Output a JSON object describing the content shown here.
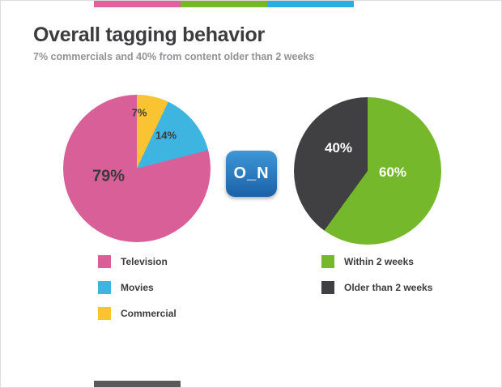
{
  "page": {
    "title": "Overall tagging behavior",
    "subtitle": "7% commercials and 40% from content older than 2 weeks"
  },
  "accent_strips": {
    "top": [
      {
        "name": "pink",
        "color": "#e0619b"
      },
      {
        "name": "green",
        "color": "#77b82a"
      },
      {
        "name": "blue",
        "color": "#2bace2"
      }
    ],
    "bottom": [
      {
        "name": "gray",
        "color": "#59595b"
      }
    ]
  },
  "logo": {
    "text": "O_N",
    "background": "#2a7cc2"
  },
  "chart_data": [
    {
      "type": "pie",
      "name": "tagging-by-content-type",
      "slices": [
        {
          "label": "Commercial",
          "value": 7,
          "color": "#f9c331",
          "data_label": "7%"
        },
        {
          "label": "Movies",
          "value": 14,
          "color": "#3eb4e1",
          "data_label": "14%"
        },
        {
          "label": "Television",
          "value": 79,
          "color": "#d95f99",
          "data_label": "79%"
        }
      ],
      "legend_order": [
        "Television",
        "Movies",
        "Commercial"
      ],
      "legend_position": "bottom-left"
    },
    {
      "type": "pie",
      "name": "tagging-by-content-age",
      "slices": [
        {
          "label": "Within 2 weeks",
          "value": 60,
          "color": "#76b82c",
          "data_label": "60%"
        },
        {
          "label": "Older than 2 weeks",
          "value": 40,
          "color": "#404042",
          "data_label": "40%"
        }
      ],
      "legend_order": [
        "Within 2 weeks",
        "Older than 2 weeks"
      ],
      "legend_position": "bottom-right"
    }
  ]
}
